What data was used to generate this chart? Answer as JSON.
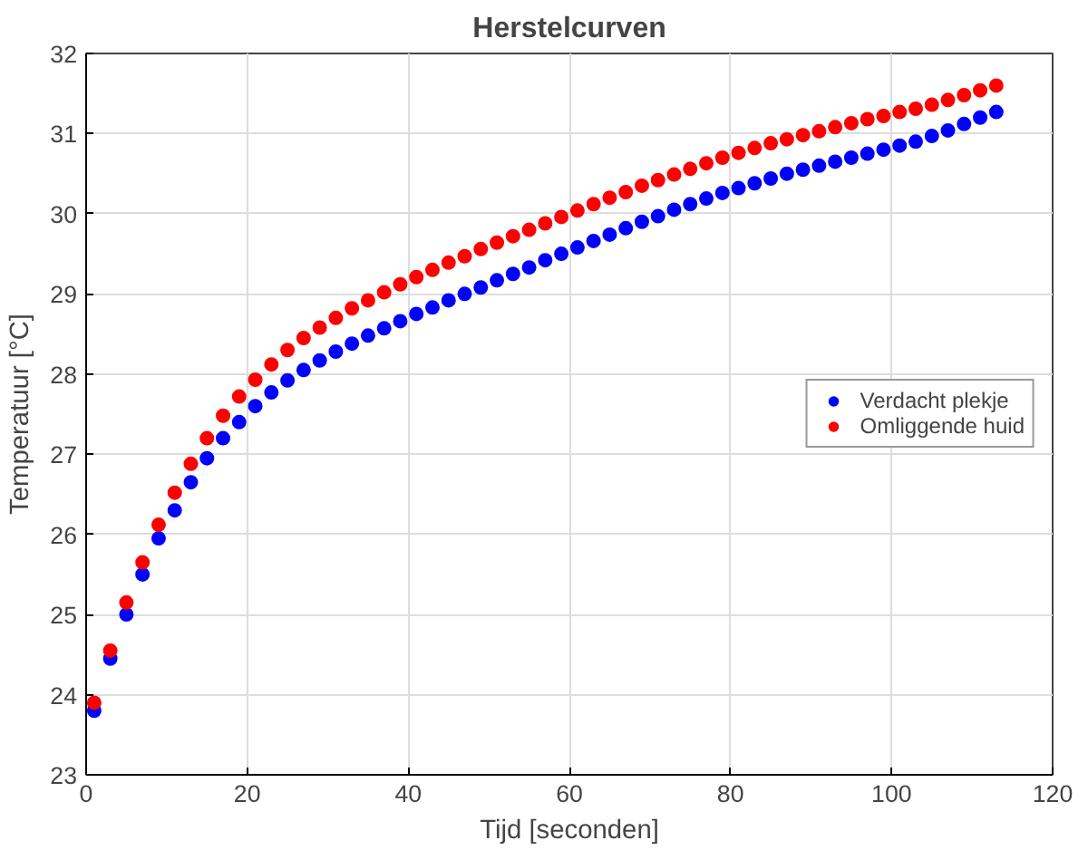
{
  "chart_data": {
    "type": "scatter",
    "title": "Herstelcurven",
    "xlabel": "Tijd [seconden]",
    "ylabel": "Temperatuur [°C]",
    "x": [
      1,
      3,
      5,
      7,
      9,
      11,
      13,
      15,
      17,
      19,
      21,
      23,
      25,
      27,
      29,
      31,
      33,
      35,
      37,
      39,
      41,
      43,
      45,
      47,
      49,
      51,
      53,
      55,
      57,
      59,
      61,
      63,
      65,
      67,
      69,
      71,
      73,
      75,
      77,
      79,
      81,
      83,
      85,
      87,
      89,
      91,
      93,
      95,
      97,
      99,
      101,
      103,
      105,
      107,
      109,
      111,
      113
    ],
    "series": [
      {
        "name": "Verdacht plekje",
        "color": "#0000ff",
        "values": [
          23.8,
          24.45,
          25.0,
          25.5,
          25.95,
          26.3,
          26.65,
          26.95,
          27.2,
          27.4,
          27.6,
          27.77,
          27.92,
          28.05,
          28.17,
          28.28,
          28.38,
          28.48,
          28.57,
          28.66,
          28.75,
          28.83,
          28.92,
          29.0,
          29.08,
          29.17,
          29.25,
          29.33,
          29.42,
          29.5,
          29.58,
          29.66,
          29.74,
          29.82,
          29.9,
          29.97,
          30.05,
          30.12,
          30.19,
          30.26,
          30.32,
          30.38,
          30.44,
          30.5,
          30.55,
          30.6,
          30.65,
          30.7,
          30.75,
          30.8,
          30.85,
          30.9,
          30.97,
          31.04,
          31.12,
          31.2,
          31.27
        ]
      },
      {
        "name": "Omliggende huid",
        "color": "#ff0000",
        "values": [
          23.9,
          24.55,
          25.15,
          25.65,
          26.12,
          26.52,
          26.88,
          27.2,
          27.48,
          27.72,
          27.93,
          28.12,
          28.3,
          28.45,
          28.58,
          28.7,
          28.82,
          28.92,
          29.02,
          29.12,
          29.21,
          29.3,
          29.39,
          29.47,
          29.56,
          29.64,
          29.72,
          29.8,
          29.88,
          29.96,
          30.04,
          30.12,
          30.2,
          30.27,
          30.35,
          30.42,
          30.49,
          30.56,
          30.63,
          30.7,
          30.76,
          30.82,
          30.88,
          30.93,
          30.98,
          31.03,
          31.08,
          31.13,
          31.18,
          31.22,
          31.27,
          31.31,
          31.36,
          31.42,
          31.48,
          31.54,
          31.6
        ]
      }
    ],
    "xlim": [
      0,
      120
    ],
    "ylim": [
      23,
      32
    ],
    "xticks": [
      0,
      20,
      40,
      60,
      80,
      100,
      120
    ],
    "yticks": [
      23,
      24,
      25,
      26,
      27,
      28,
      29,
      30,
      31,
      32
    ],
    "grid": true,
    "legend": "right",
    "marker": "circle"
  }
}
